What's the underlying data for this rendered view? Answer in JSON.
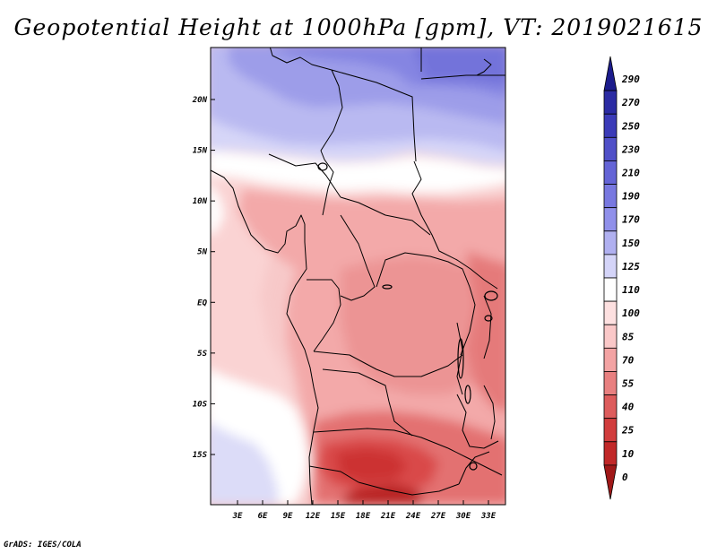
{
  "title": "Geopotential Height at 1000hPa [gpm], VT: 2019021615",
  "credit": "GrADS: IGES/COLA",
  "map": {
    "lat_labels": [
      {
        "text": "20N",
        "lat": 20
      },
      {
        "text": "15N",
        "lat": 15
      },
      {
        "text": "10N",
        "lat": 10
      },
      {
        "text": "5N",
        "lat": 5
      },
      {
        "text": "EQ",
        "lat": 0
      },
      {
        "text": "5S",
        "lat": -5
      },
      {
        "text": "10S",
        "lat": -10
      },
      {
        "text": "15S",
        "lat": -15
      }
    ],
    "lon_labels": [
      {
        "text": "3E",
        "lon": 3
      },
      {
        "text": "6E",
        "lon": 6
      },
      {
        "text": "9E",
        "lon": 9
      },
      {
        "text": "12E",
        "lon": 12
      },
      {
        "text": "15E",
        "lon": 15
      },
      {
        "text": "18E",
        "lon": 18
      },
      {
        "text": "21E",
        "lon": 21
      },
      {
        "text": "24E",
        "lon": 24
      },
      {
        "text": "27E",
        "lon": 27
      },
      {
        "text": "30E",
        "lon": 30
      },
      {
        "text": "33E",
        "lon": 33
      }
    ]
  },
  "colorbar": {
    "labels": [
      "290",
      "270",
      "250",
      "230",
      "210",
      "190",
      "170",
      "150",
      "125",
      "110",
      "100",
      "85",
      "70",
      "55",
      "40",
      "25",
      "10",
      "0"
    ],
    "colors": [
      "#1c1c8c",
      "#2b2ba3",
      "#3b3bb8",
      "#5050c8",
      "#6464d6",
      "#7878e0",
      "#9090ea",
      "#b0b0f0",
      "#d4d4f8",
      "#ffffff",
      "#fde0e0",
      "#fac8c8",
      "#f3a3a3",
      "#e88080",
      "#dd5c5c",
      "#d13d3d",
      "#c12828",
      "#a01818"
    ]
  }
}
